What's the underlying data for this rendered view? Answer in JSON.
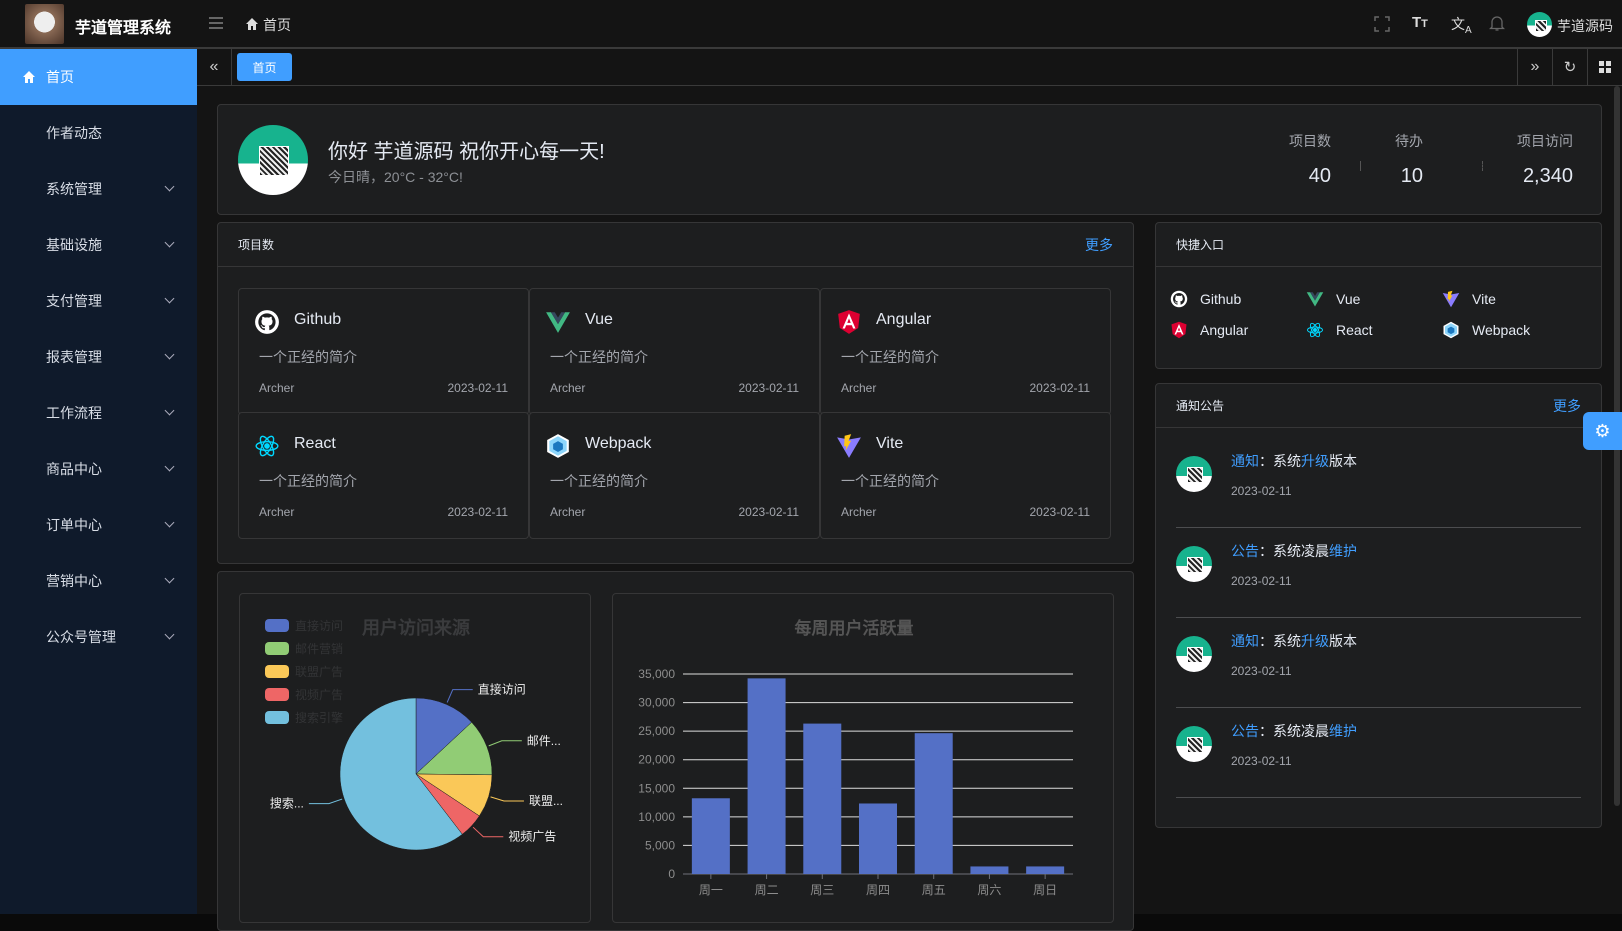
{
  "header": {
    "app_title": "芋道管理系统",
    "breadcrumb": "首页",
    "user_name": "芋道源码",
    "icons": [
      "menu-fold-icon",
      "home-icon",
      "fullscreen-icon",
      "font-size-icon",
      "translate-icon",
      "bell-icon"
    ]
  },
  "sidebar": {
    "items": [
      {
        "label": "首页",
        "active": true,
        "icon": "home-icon"
      },
      {
        "label": "作者动态"
      },
      {
        "label": "系统管理",
        "expandable": true
      },
      {
        "label": "基础设施",
        "expandable": true
      },
      {
        "label": "支付管理",
        "expandable": true
      },
      {
        "label": "报表管理",
        "expandable": true
      },
      {
        "label": "工作流程",
        "expandable": true
      },
      {
        "label": "商品中心",
        "expandable": true
      },
      {
        "label": "订单中心",
        "expandable": true
      },
      {
        "label": "营销中心",
        "expandable": true
      },
      {
        "label": "公众号管理",
        "expandable": true
      }
    ]
  },
  "tabs": {
    "items": [
      {
        "label": "首页",
        "active": true
      }
    ]
  },
  "welcome": {
    "greeting": "你好 芋道源码 祝你开心每一天!",
    "weather": "今日晴，20°C - 32°C!",
    "stats": [
      {
        "label": "项目数",
        "value": "40"
      },
      {
        "label": "待办",
        "value": "10"
      },
      {
        "label": "项目访问",
        "value": "2,340"
      }
    ]
  },
  "projects": {
    "title": "项目数",
    "more": "更多",
    "items": [
      {
        "name": "Github",
        "desc": "一个正经的简介",
        "author": "Archer",
        "date": "2023-02-11",
        "icon": "github-icon"
      },
      {
        "name": "Vue",
        "desc": "一个正经的简介",
        "author": "Archer",
        "date": "2023-02-11",
        "icon": "vue-icon"
      },
      {
        "name": "Angular",
        "desc": "一个正经的简介",
        "author": "Archer",
        "date": "2023-02-11",
        "icon": "angular-icon"
      },
      {
        "name": "React",
        "desc": "一个正经的简介",
        "author": "Archer",
        "date": "2023-02-11",
        "icon": "react-icon"
      },
      {
        "name": "Webpack",
        "desc": "一个正经的简介",
        "author": "Archer",
        "date": "2023-02-11",
        "icon": "webpack-icon"
      },
      {
        "name": "Vite",
        "desc": "一个正经的简介",
        "author": "Archer",
        "date": "2023-02-11",
        "icon": "vite-icon"
      }
    ]
  },
  "quick": {
    "title": "快捷入口",
    "items": [
      {
        "name": "Github",
        "icon": "github-icon"
      },
      {
        "name": "Vue",
        "icon": "vue-icon"
      },
      {
        "name": "Vite",
        "icon": "vite-icon"
      },
      {
        "name": "Angular",
        "icon": "angular-icon"
      },
      {
        "name": "React",
        "icon": "react-icon"
      },
      {
        "name": "Webpack",
        "icon": "webpack-icon"
      }
    ]
  },
  "notices": {
    "title": "通知公告",
    "more": "更多",
    "items": [
      {
        "type": "通知",
        "sep": "：",
        "pre": "系统",
        "hl": "升级",
        "post": "版本",
        "date": "2023-02-11"
      },
      {
        "type": "公告",
        "sep": "：",
        "pre": "系统凌晨",
        "hl": "维护",
        "post": "",
        "date": "2023-02-11"
      },
      {
        "type": "通知",
        "sep": "：",
        "pre": "系统",
        "hl": "升级",
        "post": "版本",
        "date": "2023-02-11"
      },
      {
        "type": "公告",
        "sep": "：",
        "pre": "系统凌晨",
        "hl": "维护",
        "post": "",
        "date": "2023-02-11"
      }
    ]
  },
  "colors": {
    "accent": "#409eff",
    "sidebar_bg": "#0f1a2b",
    "card_bg": "#1d1e1f"
  },
  "chart_data": [
    {
      "type": "pie",
      "title": "用户访问来源",
      "legend_placement": "top-left",
      "categories": [
        "直接访问",
        "邮件营销",
        "联盟广告",
        "视频广告",
        "搜索引擎"
      ],
      "slice_labels": [
        "直接访问",
        "邮件...",
        "联盟...",
        "视频广告",
        "搜索..."
      ],
      "values": [
        335,
        310,
        234,
        135,
        1548
      ],
      "colors": [
        "#5470c6",
        "#91cc75",
        "#fac858",
        "#ee6666",
        "#73c0de"
      ]
    },
    {
      "type": "bar",
      "title": "每周用户活跃量",
      "categories": [
        "周一",
        "周二",
        "周三",
        "周四",
        "周五",
        "周六",
        "周日"
      ],
      "values": [
        13253,
        34235,
        26321,
        12340,
        24643,
        1322,
        1324
      ],
      "ylim": [
        0,
        35000
      ],
      "yticks": [
        "0",
        "5,000",
        "10,000",
        "15,000",
        "20,000",
        "25,000",
        "30,000",
        "35,000"
      ],
      "grid": true,
      "color": "#5470c6"
    }
  ]
}
